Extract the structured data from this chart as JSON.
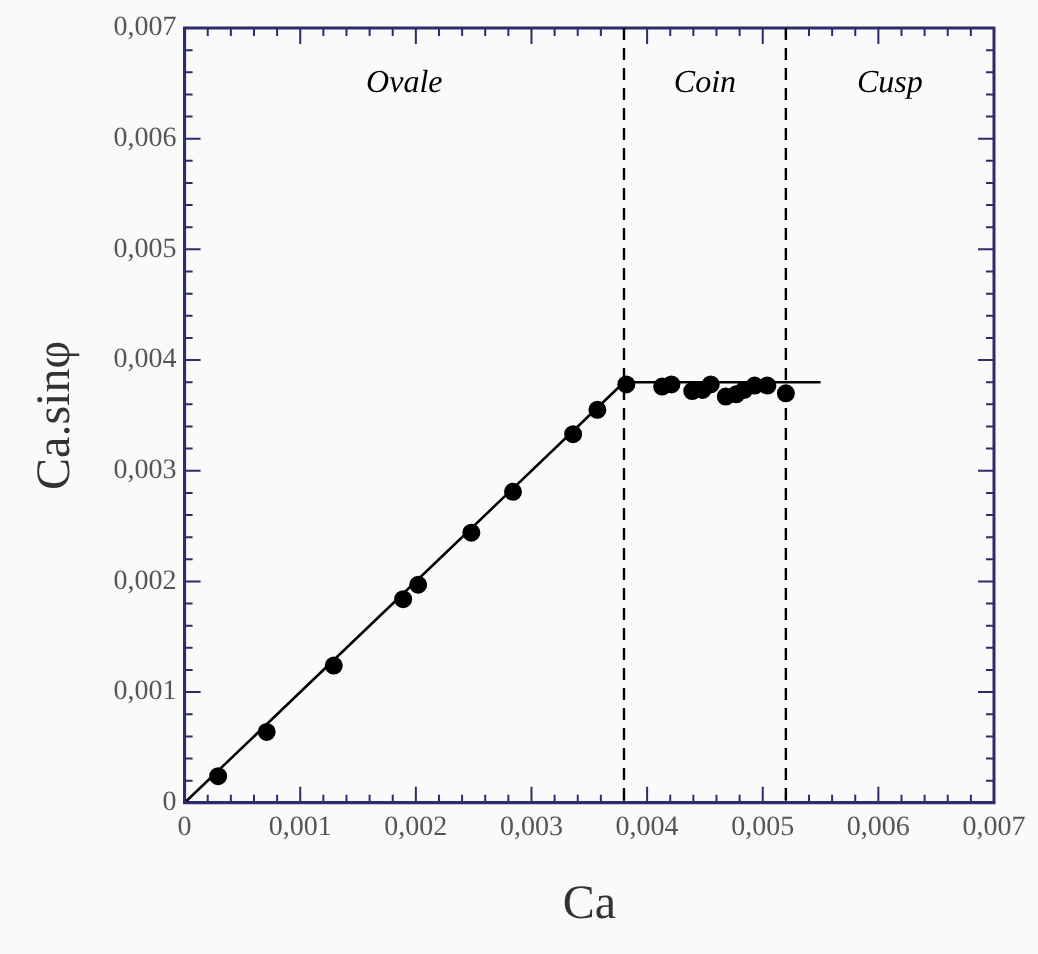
{
  "chart_data": {
    "type": "scatter",
    "xlabel": "Ca",
    "ylabel": "Ca.sinφ",
    "xlim": [
      0,
      0.007
    ],
    "ylim": [
      0,
      0.007
    ],
    "xticks": [
      {
        "value": 0,
        "label": "0"
      },
      {
        "value": 0.0002,
        "label": null
      },
      {
        "value": 0.0004,
        "label": null
      },
      {
        "value": 0.0006,
        "label": null
      },
      {
        "value": 0.0008,
        "label": null
      },
      {
        "value": 0.001,
        "label": "0,001"
      },
      {
        "value": 0.0012,
        "label": null
      },
      {
        "value": 0.0014,
        "label": null
      },
      {
        "value": 0.0016,
        "label": null
      },
      {
        "value": 0.0018,
        "label": null
      },
      {
        "value": 0.002,
        "label": "0,002"
      },
      {
        "value": 0.0022,
        "label": null
      },
      {
        "value": 0.0024,
        "label": null
      },
      {
        "value": 0.0026,
        "label": null
      },
      {
        "value": 0.0028,
        "label": null
      },
      {
        "value": 0.003,
        "label": "0,003"
      },
      {
        "value": 0.0032,
        "label": null
      },
      {
        "value": 0.0034,
        "label": null
      },
      {
        "value": 0.0036,
        "label": null
      },
      {
        "value": 0.0038,
        "label": null
      },
      {
        "value": 0.004,
        "label": "0,004"
      },
      {
        "value": 0.0042,
        "label": null
      },
      {
        "value": 0.0044,
        "label": null
      },
      {
        "value": 0.0046,
        "label": null
      },
      {
        "value": 0.0048,
        "label": null
      },
      {
        "value": 0.005,
        "label": "0,005"
      },
      {
        "value": 0.0052,
        "label": null
      },
      {
        "value": 0.0054,
        "label": null
      },
      {
        "value": 0.0056,
        "label": null
      },
      {
        "value": 0.0058,
        "label": null
      },
      {
        "value": 0.006,
        "label": "0,006"
      },
      {
        "value": 0.0062,
        "label": null
      },
      {
        "value": 0.0064,
        "label": null
      },
      {
        "value": 0.0066,
        "label": null
      },
      {
        "value": 0.0068,
        "label": null
      },
      {
        "value": 0.007,
        "label": "0,007"
      }
    ],
    "yticks": [
      {
        "value": 0,
        "label": "0"
      },
      {
        "value": 0.0002,
        "label": null
      },
      {
        "value": 0.0004,
        "label": null
      },
      {
        "value": 0.0006,
        "label": null
      },
      {
        "value": 0.0008,
        "label": null
      },
      {
        "value": 0.001,
        "label": "0,001"
      },
      {
        "value": 0.0012,
        "label": null
      },
      {
        "value": 0.0014,
        "label": null
      },
      {
        "value": 0.0016,
        "label": null
      },
      {
        "value": 0.0018,
        "label": null
      },
      {
        "value": 0.002,
        "label": "0,002"
      },
      {
        "value": 0.0022,
        "label": null
      },
      {
        "value": 0.0024,
        "label": null
      },
      {
        "value": 0.0026,
        "label": null
      },
      {
        "value": 0.0028,
        "label": null
      },
      {
        "value": 0.003,
        "label": "0,003"
      },
      {
        "value": 0.0032,
        "label": null
      },
      {
        "value": 0.0034,
        "label": null
      },
      {
        "value": 0.0036,
        "label": null
      },
      {
        "value": 0.0038,
        "label": null
      },
      {
        "value": 0.004,
        "label": "0,004"
      },
      {
        "value": 0.0042,
        "label": null
      },
      {
        "value": 0.0044,
        "label": null
      },
      {
        "value": 0.0046,
        "label": null
      },
      {
        "value": 0.0048,
        "label": null
      },
      {
        "value": 0.005,
        "label": "0,005"
      },
      {
        "value": 0.0052,
        "label": null
      },
      {
        "value": 0.0054,
        "label": null
      },
      {
        "value": 0.0056,
        "label": null
      },
      {
        "value": 0.0058,
        "label": null
      },
      {
        "value": 0.006,
        "label": "0,006"
      },
      {
        "value": 0.0062,
        "label": null
      },
      {
        "value": 0.0064,
        "label": null
      },
      {
        "value": 0.0066,
        "label": null
      },
      {
        "value": 0.0068,
        "label": null
      },
      {
        "value": 0.007,
        "label": "0,007"
      }
    ],
    "grid": false,
    "legend": false,
    "series": [
      {
        "color": "#000000",
        "marker": "circle",
        "x": [
          0.00029,
          0.00071,
          0.00129,
          0.00189,
          0.00202,
          0.00248,
          0.00284,
          0.00336,
          0.00357,
          0.00382,
          0.00413,
          0.00421,
          0.00439,
          0.00448,
          0.00455,
          0.00468,
          0.00477,
          0.00484,
          0.00493,
          0.00504,
          0.0052
        ],
        "values": [
          0.00024,
          0.00064,
          0.00124,
          0.00184,
          0.00197,
          0.00244,
          0.00281,
          0.00333,
          0.00355,
          0.00378,
          0.00376,
          0.00378,
          0.00372,
          0.00373,
          0.00378,
          0.00367,
          0.00369,
          0.00373,
          0.00377,
          0.00377,
          0.0037
        ]
      },
      {
        "type": "line",
        "color": "#000000",
        "marker": "none",
        "line_style": "solid",
        "x": [
          0,
          0.0038,
          0.0055
        ],
        "values": [
          0,
          0.0038,
          0.0038
        ]
      }
    ],
    "ref_lines": [
      {
        "axis": "x",
        "value": 0.0038,
        "color": "#000000",
        "line_style": "dashed"
      },
      {
        "axis": "x",
        "value": 0.0052,
        "color": "#000000",
        "line_style": "dashed"
      }
    ],
    "annotations": [
      "Ovale",
      "Coin",
      "Cusp"
    ]
  }
}
